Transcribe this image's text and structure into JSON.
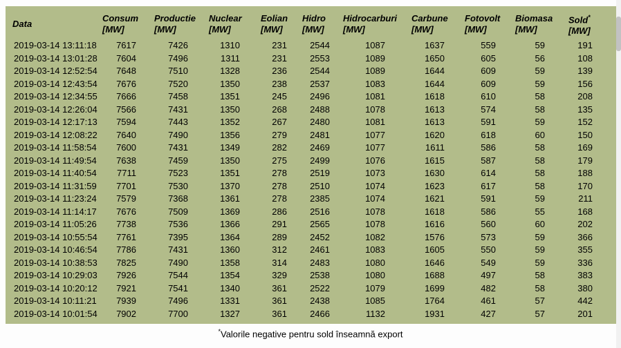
{
  "page": {
    "background": "#fdfdfd",
    "table_bg": "#b2bc8a",
    "text_color": "#000000",
    "scrollbar_track": "#f1f1f1",
    "scrollbar_thumb": "#c2c2c2"
  },
  "table": {
    "columns": [
      {
        "name": "Data",
        "unit": ""
      },
      {
        "name": "Consum",
        "unit": "[MW]"
      },
      {
        "name": "Productie",
        "unit": "[MW]"
      },
      {
        "name": "Nuclear",
        "unit": "[MW]"
      },
      {
        "name": "Eolian",
        "unit": "[MW]"
      },
      {
        "name": "Hidro",
        "unit": "[MW]"
      },
      {
        "name": "Hidrocarburi",
        "unit": "[MW]"
      },
      {
        "name": "Carbune",
        "unit": "[MW]"
      },
      {
        "name": "Fotovolt",
        "unit": "[MW]"
      },
      {
        "name": "Biomasa",
        "unit": "[MW]"
      },
      {
        "name": "Sold",
        "unit": "[MW]",
        "marker": "*"
      }
    ],
    "rows": [
      [
        "2019-03-14 13:11:18",
        "7617",
        "7426",
        "1310",
        "231",
        "2544",
        "1087",
        "1637",
        "559",
        "59",
        "191"
      ],
      [
        "2019-03-14 13:01:28",
        "7604",
        "7496",
        "1311",
        "231",
        "2553",
        "1089",
        "1650",
        "605",
        "56",
        "108"
      ],
      [
        "2019-03-14 12:52:54",
        "7648",
        "7510",
        "1328",
        "236",
        "2544",
        "1089",
        "1644",
        "609",
        "59",
        "139"
      ],
      [
        "2019-03-14 12:43:54",
        "7676",
        "7520",
        "1350",
        "238",
        "2537",
        "1083",
        "1644",
        "609",
        "59",
        "156"
      ],
      [
        "2019-03-14 12:34:55",
        "7666",
        "7458",
        "1351",
        "245",
        "2496",
        "1081",
        "1618",
        "610",
        "58",
        "208"
      ],
      [
        "2019-03-14 12:26:04",
        "7566",
        "7431",
        "1350",
        "268",
        "2488",
        "1078",
        "1613",
        "574",
        "58",
        "135"
      ],
      [
        "2019-03-14 12:17:13",
        "7594",
        "7443",
        "1352",
        "267",
        "2480",
        "1081",
        "1613",
        "591",
        "59",
        "152"
      ],
      [
        "2019-03-14 12:08:22",
        "7640",
        "7490",
        "1356",
        "279",
        "2481",
        "1077",
        "1620",
        "618",
        "60",
        "150"
      ],
      [
        "2019-03-14 11:58:54",
        "7600",
        "7431",
        "1349",
        "282",
        "2469",
        "1077",
        "1611",
        "586",
        "58",
        "169"
      ],
      [
        "2019-03-14 11:49:54",
        "7638",
        "7459",
        "1350",
        "275",
        "2499",
        "1076",
        "1615",
        "587",
        "58",
        "179"
      ],
      [
        "2019-03-14 11:40:54",
        "7711",
        "7523",
        "1351",
        "278",
        "2519",
        "1073",
        "1630",
        "614",
        "58",
        "188"
      ],
      [
        "2019-03-14 11:31:59",
        "7701",
        "7530",
        "1370",
        "278",
        "2510",
        "1074",
        "1623",
        "617",
        "58",
        "170"
      ],
      [
        "2019-03-14 11:23:24",
        "7579",
        "7368",
        "1361",
        "278",
        "2385",
        "1074",
        "1621",
        "591",
        "59",
        "211"
      ],
      [
        "2019-03-14 11:14:17",
        "7676",
        "7509",
        "1369",
        "286",
        "2516",
        "1078",
        "1618",
        "586",
        "55",
        "168"
      ],
      [
        "2019-03-14 11:05:26",
        "7738",
        "7536",
        "1366",
        "291",
        "2565",
        "1078",
        "1616",
        "560",
        "60",
        "202"
      ],
      [
        "2019-03-14 10:55:54",
        "7761",
        "7395",
        "1364",
        "289",
        "2452",
        "1082",
        "1576",
        "573",
        "59",
        "366"
      ],
      [
        "2019-03-14 10:46:54",
        "7786",
        "7431",
        "1360",
        "312",
        "2461",
        "1083",
        "1605",
        "550",
        "59",
        "355"
      ],
      [
        "2019-03-14 10:38:53",
        "7825",
        "7490",
        "1358",
        "314",
        "2483",
        "1080",
        "1646",
        "549",
        "59",
        "336"
      ],
      [
        "2019-03-14 10:29:03",
        "7926",
        "7544",
        "1354",
        "329",
        "2538",
        "1080",
        "1688",
        "497",
        "58",
        "383"
      ],
      [
        "2019-03-14 10:20:12",
        "7921",
        "7541",
        "1340",
        "361",
        "2522",
        "1079",
        "1699",
        "482",
        "58",
        "380"
      ],
      [
        "2019-03-14 10:11:21",
        "7939",
        "7496",
        "1331",
        "361",
        "2438",
        "1085",
        "1764",
        "461",
        "57",
        "442"
      ],
      [
        "2019-03-14 10:01:54",
        "7902",
        "7700",
        "1327",
        "361",
        "2466",
        "1132",
        "1931",
        "427",
        "57",
        "201"
      ]
    ]
  },
  "footnote": {
    "marker": "*",
    "text": "Valorile negative pentru sold înseamnă export"
  }
}
